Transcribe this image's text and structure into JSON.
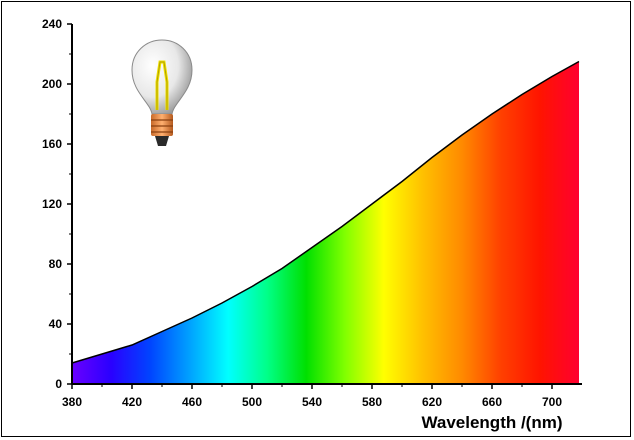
{
  "chart_data": {
    "type": "area",
    "title": "",
    "xlabel": "Wavelength /(nm)",
    "ylabel": "",
    "xlim": [
      380,
      720
    ],
    "ylim": [
      0,
      240
    ],
    "x_ticks": [
      "380",
      "420",
      "460",
      "500",
      "540",
      "580",
      "620",
      "660",
      "700"
    ],
    "y_ticks": [
      "0",
      "40",
      "80",
      "120",
      "160",
      "200",
      "240"
    ],
    "grid": false,
    "fill": "visible spectrum gradient (violet to red)",
    "x": [
      380,
      400,
      420,
      440,
      460,
      480,
      500,
      520,
      540,
      560,
      580,
      600,
      620,
      640,
      660,
      680,
      700,
      718
    ],
    "y": [
      14,
      20,
      26,
      35,
      44,
      54,
      65,
      77,
      91,
      105,
      120,
      135,
      151,
      166,
      180,
      193,
      205,
      215
    ],
    "annotations": [
      "light-bulb-icon"
    ]
  },
  "spectrum_colors": [
    "#6a00ff",
    "#2a00ff",
    "#0044ff",
    "#00a0ff",
    "#00ffff",
    "#00ff88",
    "#00e000",
    "#80ff00",
    "#ffff00",
    "#ffc000",
    "#ff8a00",
    "#ff4000",
    "#ff1400",
    "#ff0030"
  ]
}
